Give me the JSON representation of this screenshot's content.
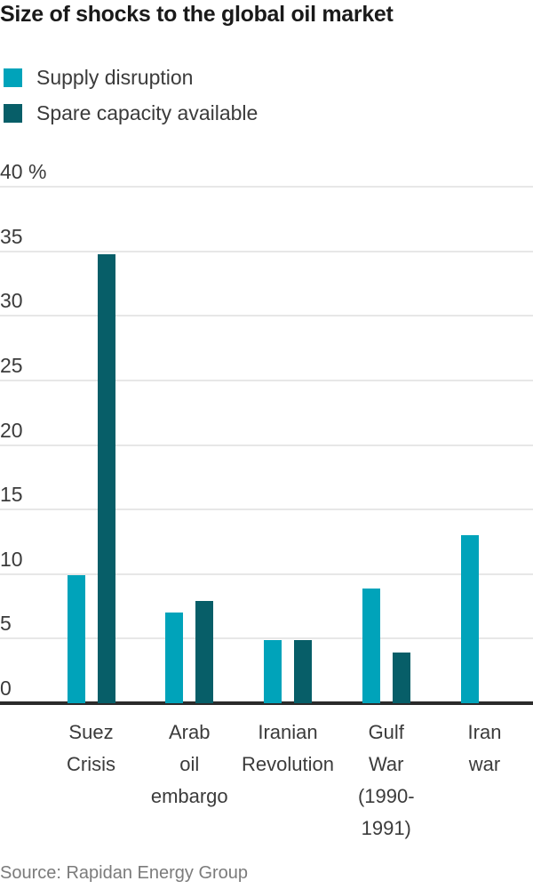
{
  "source_note": "Source: Rapidan Energy Group",
  "colors": {
    "supply_disruption": "#00A3BA",
    "spare_capacity": "#075E68",
    "gridline": "#E7E7E7",
    "axis_line": "#2B2B2B",
    "title_text": "#1A1A1A",
    "label_text": "#3B3B3B",
    "source_text": "#7B7B7B"
  },
  "chart_data": {
    "type": "bar",
    "title": "Size of shocks to the global oil market",
    "categories": [
      "Suez Crisis",
      "Arab oil embargo",
      "Iranian Revolution",
      "Gulf War (1990-1991)",
      "Iran war"
    ],
    "category_label_lines": [
      [
        "Suez",
        "Crisis"
      ],
      [
        "Arab",
        "oil",
        "embargo"
      ],
      [
        "Iranian",
        "Revolution"
      ],
      [
        "Gulf",
        "War",
        "(1990-",
        "1991)"
      ],
      [
        "Iran",
        "war"
      ]
    ],
    "series": [
      {
        "name": "Supply disruption",
        "color": "#00A3BA",
        "values": [
          9.9,
          7,
          4.9,
          8.9,
          13
        ]
      },
      {
        "name": "Spare capacity available",
        "color": "#075E68",
        "values": [
          34.8,
          7.9,
          4.9,
          3.9,
          0
        ]
      }
    ],
    "xlabel": "",
    "ylabel": "%",
    "ylim": [
      0,
      40
    ],
    "yticks": [
      0,
      5,
      10,
      15,
      20,
      25,
      30,
      35,
      40
    ],
    "ytick_labels": [
      "0",
      "5",
      "10",
      "15",
      "20",
      "25",
      "30",
      "35",
      "40 %"
    ],
    "grid": true,
    "legend_position": "top-left"
  }
}
